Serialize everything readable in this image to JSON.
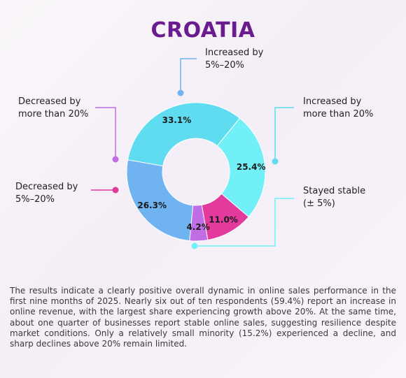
{
  "title": "CROATIA",
  "chart_data": {
    "type": "pie",
    "slices": [
      {
        "label_lines": [
          "Increased by",
          "more than 20%"
        ],
        "value": 33.1,
        "display": "33.1%",
        "color": "#5fdcef"
      },
      {
        "label_lines": [
          "Stayed stable",
          "(± 5%)"
        ],
        "value": 25.4,
        "display": "25.4%",
        "color": "#72f0f8"
      },
      {
        "label_lines": [
          "Decreased by",
          "5%–20%"
        ],
        "value": 11.0,
        "display": "11.0%",
        "color": "#e23a9d"
      },
      {
        "label_lines": [
          "Decreased by",
          "more than 20%"
        ],
        "value": 4.2,
        "display": "4.2%",
        "color": "#c06de6"
      },
      {
        "label_lines": [
          "Increased by",
          "5%–20%"
        ],
        "value": 26.3,
        "display": "26.3%",
        "color": "#6fb3f0"
      }
    ]
  },
  "description": "The results indicate a clearly positive overall dynamic in online sales performance in the first nine months of 2025. Nearly six out of ten respondents (59.4%) report an increase in online revenue, with the largest share experiencing growth above 20%. At the same time, about one quarter of businesses report stable online sales, suggesting resilience despite market conditions. Only a relatively small minority (15.2%) experienced a decline, and sharp declines above 20% remain limited."
}
